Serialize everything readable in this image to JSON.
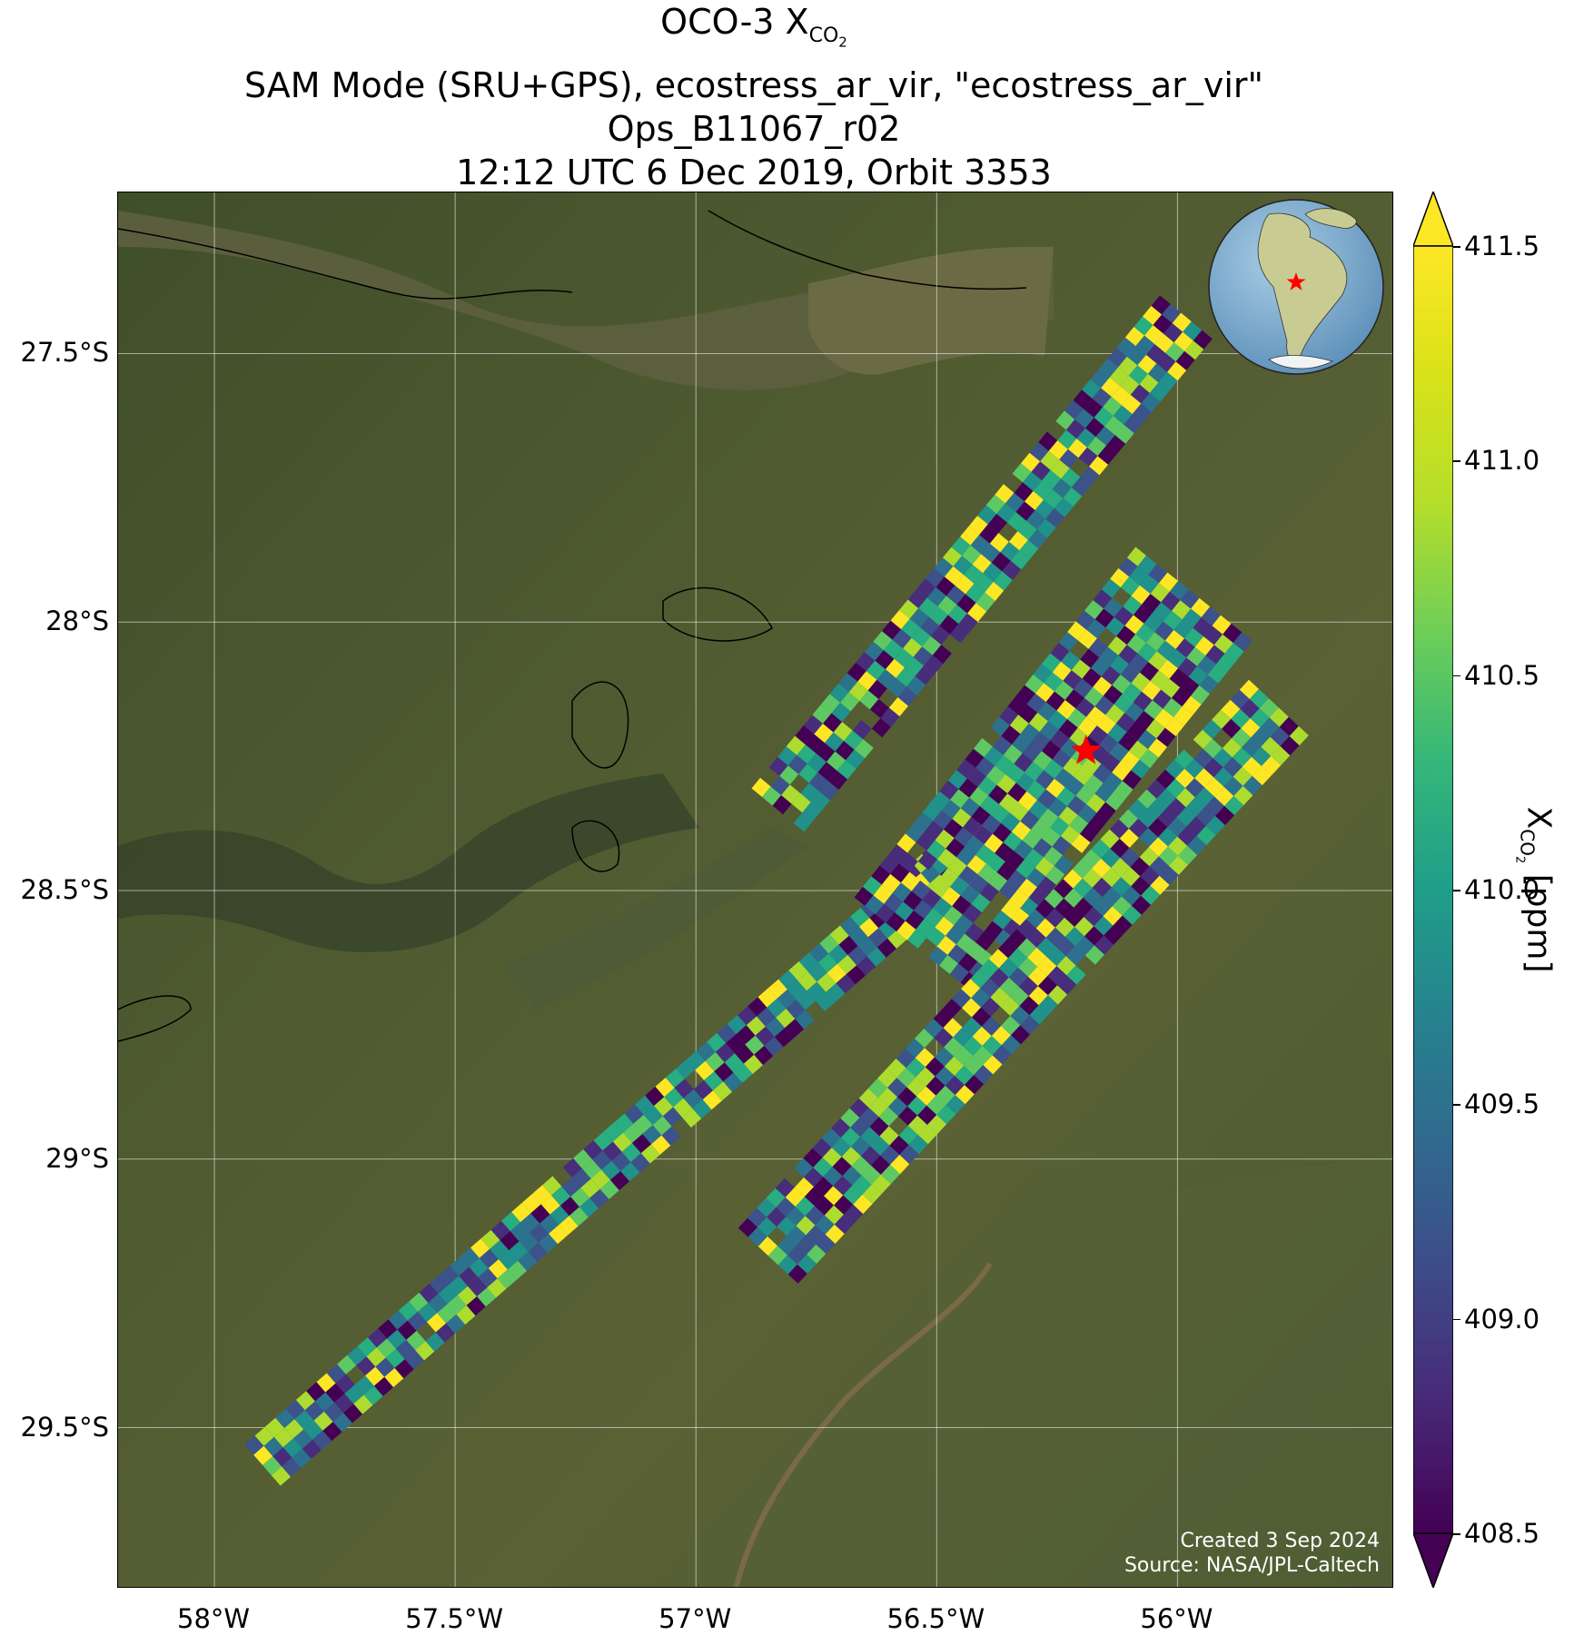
{
  "title": {
    "line1_main": "OCO-3 X",
    "line1_sub": "CO",
    "line1_subsub": "2",
    "line2": "SAM Mode (SRU+GPS), ecostress_ar_vir, \"ecostress_ar_vir\"",
    "line3": "Ops_B11067_r02",
    "line4": "12:12 UTC 6 Dec 2019, Orbit 3353"
  },
  "map": {
    "lon_range": [
      -58.2,
      -55.55
    ],
    "lat_range": [
      -29.8,
      -27.2
    ],
    "x_ticks": [
      {
        "value": -58.0,
        "label": "58°W"
      },
      {
        "value": -57.5,
        "label": "57.5°W"
      },
      {
        "value": -57.0,
        "label": "57°W"
      },
      {
        "value": -56.5,
        "label": "56.5°W"
      },
      {
        "value": -56.0,
        "label": "56°W"
      }
    ],
    "y_ticks": [
      {
        "value": -27.5,
        "label": "27.5°S"
      },
      {
        "value": -28.0,
        "label": "28°S"
      },
      {
        "value": -28.5,
        "label": "28.5°S"
      },
      {
        "value": -29.0,
        "label": "29°S"
      },
      {
        "value": -29.5,
        "label": "29.5°S"
      }
    ],
    "gridlines": true,
    "target_marker": {
      "lon": -56.19,
      "lat": -28.24,
      "color": "#ff0000",
      "shape": "star"
    },
    "credits_line1": "Created 3 Sep 2024",
    "credits_line2": "Source: NASA/JPL-Caltech",
    "inset": "orthographic globe centered on South America with red star"
  },
  "colorbar": {
    "label_main": "X",
    "label_sub": "CO",
    "label_subsub": "2",
    "label_unit": " [ppm]",
    "vmin": 408.5,
    "vmax": 411.5,
    "extend": "both",
    "colormap": "viridis",
    "ticks": [
      {
        "value": 408.5,
        "label": "408.5"
      },
      {
        "value": 409.0,
        "label": "409.0"
      },
      {
        "value": 409.5,
        "label": "409.5"
      },
      {
        "value": 410.0,
        "label": "410.0"
      },
      {
        "value": 410.5,
        "label": "410.5"
      },
      {
        "value": 411.0,
        "label": "411.0"
      },
      {
        "value": 411.5,
        "label": "411.5"
      }
    ]
  },
  "chart_data": {
    "type": "heatmap",
    "title": "OCO-3 XCO2",
    "xlabel": "",
    "ylabel": "",
    "variable": "XCO2 [ppm]",
    "value_range": [
      408.5,
      411.5
    ],
    "swaths": [
      {
        "name": "",
        "start": [
          -57.9,
          -29.57
        ],
        "end": [
          -56.02,
          -28.1
        ],
        "width_deg": 0.11
      },
      {
        "name": "",
        "start": [
          -56.83,
          -28.35
        ],
        "end": [
          -55.98,
          -27.43
        ],
        "width_deg": 0.14
      },
      {
        "name": "",
        "start": [
          -56.55,
          -28.6
        ],
        "end": [
          -55.95,
          -27.93
        ],
        "width_deg": 0.3
      },
      {
        "name": "",
        "start": [
          -56.85,
          -29.18
        ],
        "end": [
          -55.78,
          -28.15
        ],
        "width_deg": 0.16
      }
    ]
  }
}
